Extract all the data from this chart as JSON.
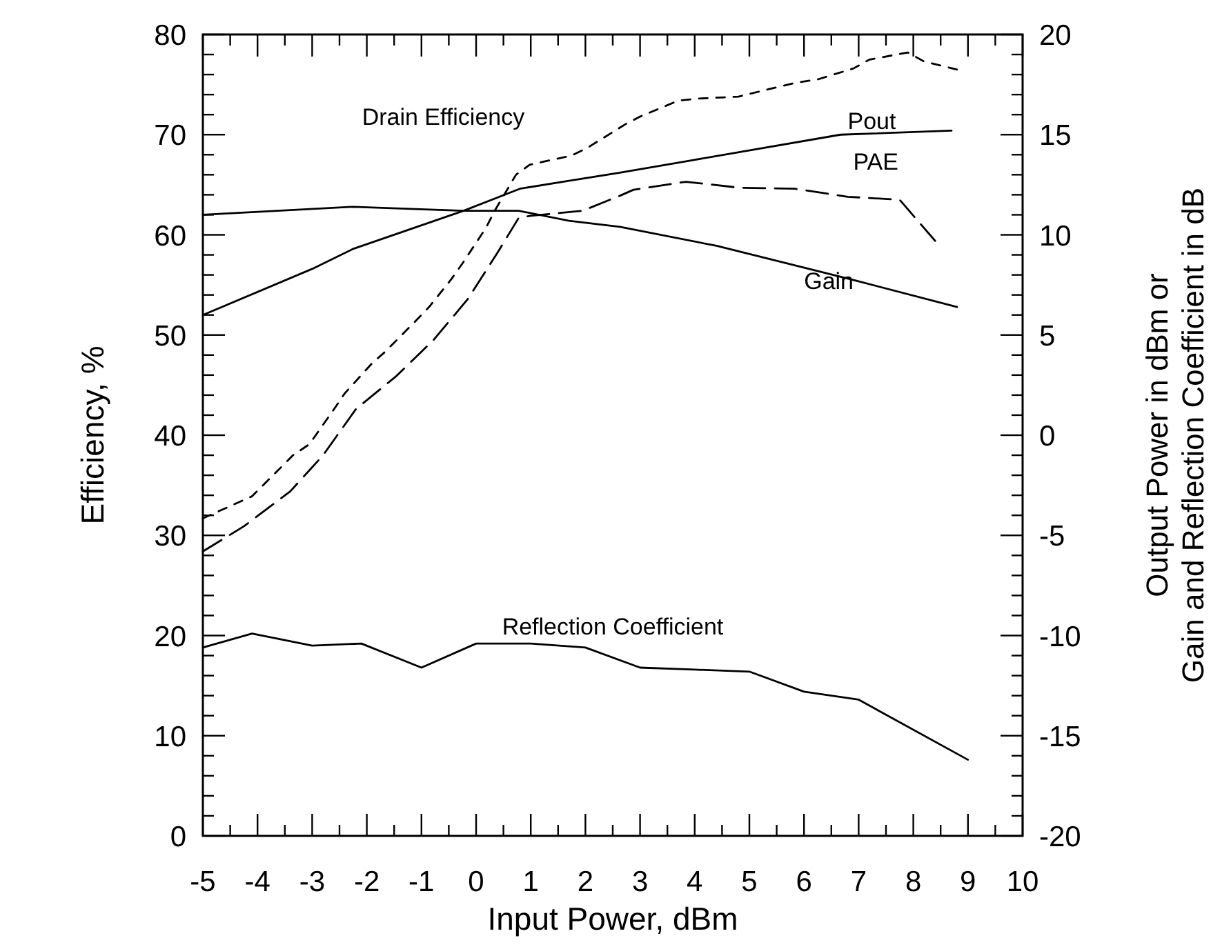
{
  "chart_data": {
    "type": "line",
    "xlabel": "Input Power, dBm",
    "ylabel": "Efficiency, %",
    "y2label": "Output Power in dBm or\nGain and Reflection Coefficient in dB",
    "xlim": [
      -5,
      10
    ],
    "ylim": [
      0,
      80
    ],
    "y2lim": [
      -20,
      20
    ],
    "xticks": [
      -5,
      {
        "value": -4.5,
        "label": null
      },
      -4,
      {
        "value": -3.5,
        "label": null
      },
      -3,
      {
        "value": -2.5,
        "label": null
      },
      -2,
      {
        "value": -1.5,
        "label": null
      },
      -1,
      {
        "value": -0.5,
        "label": null
      },
      0,
      {
        "value": 0.5,
        "label": null
      },
      1,
      {
        "value": 1.5,
        "label": null
      },
      2,
      {
        "value": 2.5,
        "label": null
      },
      3,
      {
        "value": 3.5,
        "label": null
      },
      4,
      {
        "value": 4.5,
        "label": null
      },
      5,
      {
        "value": 5.5,
        "label": null
      },
      6,
      {
        "value": 6.5,
        "label": null
      },
      7,
      {
        "value": 7.5,
        "label": null
      },
      8,
      {
        "value": 8.5,
        "label": null
      },
      9,
      {
        "value": 9.5,
        "label": null
      },
      10
    ],
    "yticks": [
      0,
      {
        "value": 2,
        "label": null
      },
      {
        "value": 4,
        "label": null
      },
      {
        "value": 6,
        "label": null
      },
      {
        "value": 8,
        "label": null
      },
      10,
      {
        "value": 12,
        "label": null
      },
      {
        "value": 14,
        "label": null
      },
      {
        "value": 16,
        "label": null
      },
      {
        "value": 18,
        "label": null
      },
      20,
      {
        "value": 22,
        "label": null
      },
      {
        "value": 24,
        "label": null
      },
      {
        "value": 26,
        "label": null
      },
      {
        "value": 28,
        "label": null
      },
      30,
      {
        "value": 32,
        "label": null
      },
      {
        "value": 34,
        "label": null
      },
      {
        "value": 36,
        "label": null
      },
      {
        "value": 38,
        "label": null
      },
      40,
      {
        "value": 42,
        "label": null
      },
      {
        "value": 44,
        "label": null
      },
      {
        "value": 46,
        "label": null
      },
      {
        "value": 48,
        "label": null
      },
      50,
      {
        "value": 52,
        "label": null
      },
      {
        "value": 54,
        "label": null
      },
      {
        "value": 56,
        "label": null
      },
      {
        "value": 58,
        "label": null
      },
      60,
      {
        "value": 62,
        "label": null
      },
      {
        "value": 64,
        "label": null
      },
      {
        "value": 66,
        "label": null
      },
      {
        "value": 68,
        "label": null
      },
      70,
      {
        "value": 72,
        "label": null
      },
      {
        "value": 74,
        "label": null
      },
      {
        "value": 76,
        "label": null
      },
      {
        "value": 78,
        "label": null
      },
      80
    ],
    "y2ticks": [
      -20,
      {
        "value": -19,
        "label": null
      },
      {
        "value": -18,
        "label": null
      },
      {
        "value": -17,
        "label": null
      },
      {
        "value": -16,
        "label": null
      },
      -15,
      {
        "value": -14,
        "label": null
      },
      {
        "value": -13,
        "label": null
      },
      {
        "value": -12,
        "label": null
      },
      {
        "value": -11,
        "label": null
      },
      -10,
      {
        "value": -9,
        "label": null
      },
      {
        "value": -8,
        "label": null
      },
      {
        "value": -7,
        "label": null
      },
      {
        "value": -6,
        "label": null
      },
      -5,
      {
        "value": -4,
        "label": null
      },
      {
        "value": -3,
        "label": null
      },
      {
        "value": -2,
        "label": null
      },
      {
        "value": -1,
        "label": null
      },
      0,
      {
        "value": 1,
        "label": null
      },
      {
        "value": 2,
        "label": null
      },
      {
        "value": 3,
        "label": null
      },
      {
        "value": 4,
        "label": null
      },
      5,
      {
        "value": 6,
        "label": null
      },
      {
        "value": 7,
        "label": null
      },
      {
        "value": 8,
        "label": null
      },
      {
        "value": 9,
        "label": null
      },
      10,
      {
        "value": 11,
        "label": null
      },
      {
        "value": 12,
        "label": null
      },
      {
        "value": 13,
        "label": null
      },
      {
        "value": 14,
        "label": null
      },
      15,
      {
        "value": 16,
        "label": null
      },
      {
        "value": 17,
        "label": null
      },
      {
        "value": 18,
        "label": null
      },
      {
        "value": 19,
        "label": null
      },
      20
    ],
    "marker": "none",
    "series": [
      {
        "name": "Drain Efficiency",
        "color": "#000000",
        "line_style": "dashed",
        "x": [
          -5,
          -4.1,
          -3.35,
          -3.05,
          -2.6,
          -2.4,
          -1.9,
          -1.67,
          -1.16,
          -0.86,
          -0.45,
          -0.23,
          0.18,
          0.35,
          0.73,
          0.98,
          1.74,
          2.04,
          2.75,
          3.0,
          3.7,
          4.07,
          4.8,
          5.1,
          5.86,
          6.24,
          6.9,
          7.2,
          7.9,
          8.2,
          8.8
        ],
        "values": [
          31.7,
          33.9,
          38,
          39.1,
          42.6,
          44.2,
          47.2,
          48.3,
          51.1,
          52.8,
          55.6,
          57.3,
          60.7,
          62.5,
          66,
          67,
          67.9,
          68.7,
          71.1,
          71.8,
          73.4,
          73.6,
          73.8,
          74.2,
          75.2,
          75.5,
          76.6,
          77.5,
          78.2,
          77.3,
          76.5
        ]
      },
      {
        "name": "PAE",
        "color": "#000000",
        "line_style": "dashed",
        "x": [
          -5,
          -4.25,
          -3.4,
          -2.8,
          -2.2,
          -1.46,
          -0.78,
          -0.15,
          0.4,
          0.78,
          1.0,
          1.95,
          2.63,
          2.88,
          3.84,
          4.82,
          5.83,
          6.8,
          7.75,
          8.4
        ],
        "values": [
          28.4,
          30.9,
          34.4,
          38,
          42.6,
          45.9,
          49.5,
          53.6,
          58.3,
          61.7,
          61.9,
          62.4,
          63.9,
          64.5,
          65.3,
          64.7,
          64.6,
          63.8,
          63.5,
          59.4
        ]
      },
      {
        "name": "Pout",
        "color": "#000000",
        "axis": "y2",
        "x": [
          -5,
          -3,
          -2.25,
          -1.08,
          -0.23,
          0.8,
          1.7,
          2.63,
          3.9,
          6.67,
          8.7
        ],
        "values": [
          6.0,
          8.3,
          9.3,
          10.4,
          11.2,
          12.3,
          12.7,
          13.1,
          13.7,
          15.0,
          15.2
        ]
      },
      {
        "name": "Gain",
        "color": "#000000",
        "axis": "y2",
        "x": [
          -5,
          -2.25,
          -0.23,
          0.78,
          1.7,
          2.63,
          4.4,
          6.9,
          8.8
        ],
        "values": [
          11.0,
          11.4,
          11.2,
          11.2,
          10.7,
          10.4,
          9.45,
          7.75,
          6.4
        ]
      },
      {
        "name": "Reflection Coefficient",
        "color": "#000000",
        "axis": "y2",
        "x": [
          -5,
          -4.1,
          -3,
          -2.1,
          -1,
          0,
          1,
          2,
          3,
          4,
          5,
          6,
          7,
          9
        ],
        "values": [
          -10.6,
          -9.9,
          -10.5,
          -10.4,
          -11.6,
          -10.4,
          -10.4,
          -10.6,
          -11.6,
          -11.7,
          -11.8,
          -12.8,
          -13.2,
          -16.2
        ]
      }
    ]
  }
}
